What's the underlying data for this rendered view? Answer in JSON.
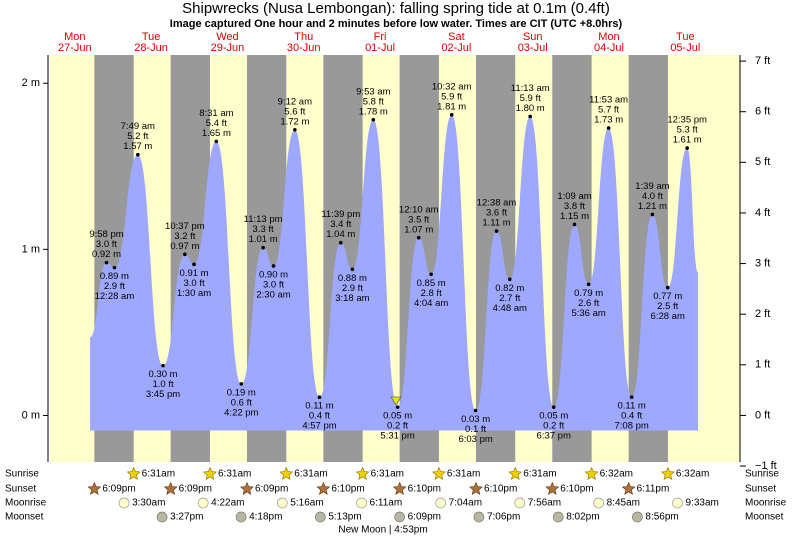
{
  "chart_data": {
    "type": "area",
    "title": "Shipwrecks (Nusa Lembongan): falling  spring tide at 0.1m (0.4ft)",
    "subtitle": "Image captured One hour and 2 minutes before low water. Times are CIT (UTC +8.0hrs)",
    "days": [
      {
        "name": "Mon",
        "date": "27-Jun",
        "sunset": "6:09pm"
      },
      {
        "name": "Tue",
        "date": "28-Jun",
        "sunrise": "6:31am",
        "sunset": "6:09pm",
        "moonrise": "3:30am",
        "moonset": "3:27pm"
      },
      {
        "name": "Wed",
        "date": "29-Jun",
        "sunrise": "6:31am",
        "sunset": "6:09pm",
        "moonrise": "4:22am",
        "moonset": "4:18pm"
      },
      {
        "name": "Thu",
        "date": "30-Jun",
        "sunrise": "6:31am",
        "sunset": "6:10pm",
        "moonrise": "5:16am",
        "moonset": "5:13pm"
      },
      {
        "name": "Fri",
        "date": "01-Jul",
        "sunrise": "6:31am",
        "sunset": "6:10pm",
        "moonrise": "6:11am",
        "moonset": "6:09pm"
      },
      {
        "name": "Sat",
        "date": "02-Jul",
        "sunrise": "6:31am",
        "sunset": "6:10pm",
        "moonrise": "7:04am",
        "moonset": "7:06pm"
      },
      {
        "name": "Sun",
        "date": "03-Jul",
        "sunrise": "6:31am",
        "sunset": "6:10pm",
        "moonrise": "7:56am",
        "moonset": "8:02pm"
      },
      {
        "name": "Mon",
        "date": "04-Jul",
        "sunrise": "6:32am",
        "sunset": "6:11pm",
        "moonrise": "8:45am",
        "moonset": "8:56pm"
      },
      {
        "name": "Tue",
        "date": "05-Jul",
        "sunrise": "6:32am",
        "moonrise": "9:33am"
      }
    ],
    "x": [
      16.8,
      21.967,
      24.467,
      31.817,
      39.75,
      46.617,
      49.5,
      56.517,
      64.367,
      71.217,
      74.5,
      81.2,
      88.95,
      95.65,
      99.3,
      105.883,
      113.517,
      120.167,
      124.067,
      130.533,
      138.05,
      144.633,
      148.8,
      155.217,
      162.617,
      169.15,
      173.6,
      179.883,
      187.133,
      193.65,
      198.467,
      204.583,
      208.0
    ],
    "values": [
      0.47,
      0.92,
      0.89,
      1.57,
      0.3,
      0.97,
      0.91,
      1.65,
      0.19,
      1.01,
      0.9,
      1.72,
      0.11,
      1.04,
      0.88,
      1.78,
      0.05,
      1.07,
      0.85,
      1.81,
      0.03,
      1.11,
      0.82,
      1.8,
      0.05,
      1.15,
      0.79,
      1.73,
      0.11,
      1.21,
      0.77,
      1.61,
      0.86
    ],
    "value_labels": [
      null,
      "0.92 m",
      "0.89 m",
      "1.57 m",
      "0.30 m",
      "0.97 m",
      "0.91 m",
      "1.65 m",
      "0.19 m",
      "1.01 m",
      "0.90 m",
      "1.72 m",
      "0.11 m",
      "1.04 m",
      "0.88 m",
      "1.78 m",
      "0.05 m",
      "1.07 m",
      "0.85 m",
      "1.81 m",
      "0.03 m",
      "1.11 m",
      "0.82 m",
      "1.80 m",
      "0.05 m",
      "1.15 m",
      "0.79 m",
      "1.73 m",
      "0.11 m",
      "1.21 m",
      "0.77 m",
      "1.61 m",
      null
    ],
    "ft_labels": [
      null,
      "3.0 ft",
      "2.9 ft",
      "5.2 ft",
      "1.0 ft",
      "3.2 ft",
      "3.0 ft",
      "5.4 ft",
      "0.6 ft",
      "3.3 ft",
      "3.0 ft",
      "5.6 ft",
      "0.4 ft",
      "3.4 ft",
      "2.9 ft",
      "5.8 ft",
      "0.2 ft",
      "3.5 ft",
      "2.8 ft",
      "5.9 ft",
      "0.1 ft",
      "3.6 ft",
      "2.7 ft",
      "5.9 ft",
      "0.2 ft",
      "3.8 ft",
      "2.6 ft",
      "5.7 ft",
      "0.4 ft",
      "4.0 ft",
      "2.5 ft",
      "5.3 ft",
      null
    ],
    "time_labels": [
      null,
      "9:58 pm",
      "12:28 am",
      "7:49 am",
      "3:45 pm",
      "10:37 pm",
      "1:30 am",
      "8:31 am",
      "4:22 pm",
      "11:13 pm",
      "2:30 am",
      "9:12 am",
      "4:57 pm",
      "11:39 pm",
      "3:18 am",
      "9:53 am",
      "5:31 pm",
      "12:10 am",
      "4:04 am",
      "10:32 am",
      "6:03 pm",
      "12:38 am",
      "4:48 am",
      "11:13 am",
      "6:37 pm",
      "1:09 am",
      "5:36 am",
      "11:53 am",
      "7:08 pm",
      "1:39 am",
      "6:28 am",
      "12:35 pm",
      null
    ],
    "color": "#9fa8ff",
    "day_color": "#ffffcc",
    "night_color": "#999999",
    "xlim": [
      4.2,
      221.2
    ],
    "ylim": [
      -0.28,
      2.17
    ],
    "yticks": [
      {
        "value": 0,
        "label": "0 m"
      },
      {
        "value": 1,
        "label": "1 m"
      },
      {
        "value": 2,
        "label": "2 m"
      }
    ],
    "y2lim": [
      -0.92,
      7.12
    ],
    "y2ticks": [
      {
        "value": -1,
        "label": "−1 ft"
      },
      {
        "value": 0,
        "label": "0 ft"
      },
      {
        "value": 1,
        "label": "1 ft"
      },
      {
        "value": 2,
        "label": "2 ft"
      },
      {
        "value": 3,
        "label": "3 ft"
      },
      {
        "value": 4,
        "label": "4 ft"
      },
      {
        "value": 5,
        "label": "5 ft"
      },
      {
        "value": 6,
        "label": "6 ft"
      },
      {
        "value": 7,
        "label": "7 ft"
      }
    ],
    "row_labels": {
      "sunrise": "Sunrise",
      "sunset": "Sunset",
      "moonrise": "Moonrise",
      "moonset": "Moonset"
    },
    "moon_phase": "New Moon | 4:53pm"
  }
}
